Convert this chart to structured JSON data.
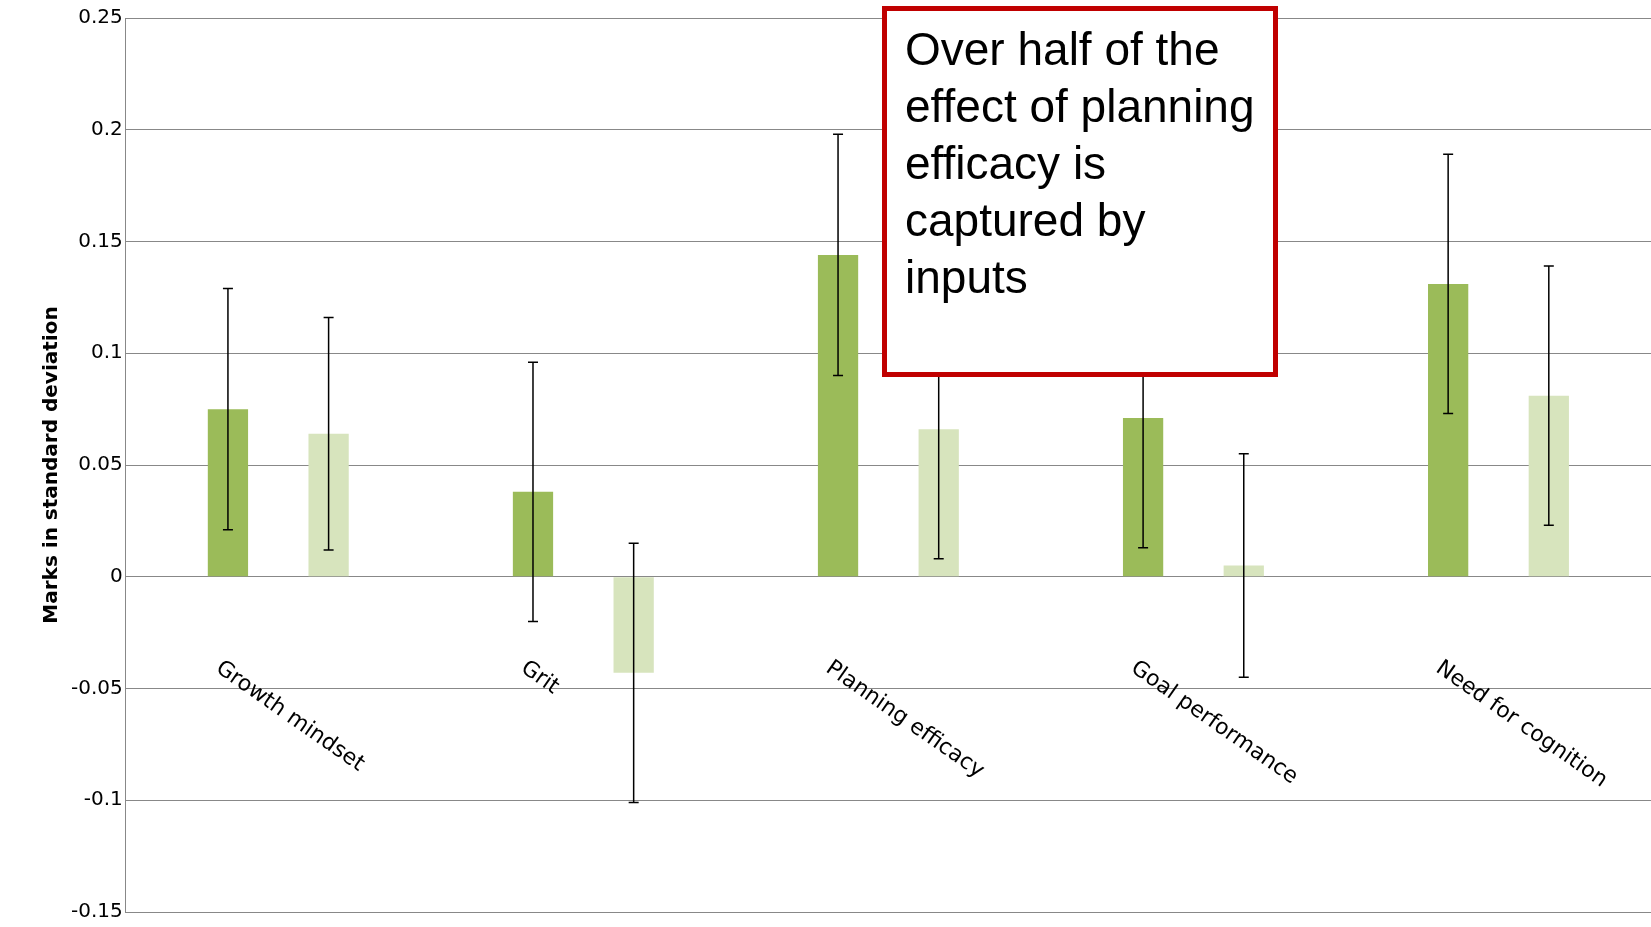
{
  "chart_data": {
    "type": "bar",
    "ylabel": "Marks in standard deviation",
    "categories": [
      "Growth mindset",
      "Grit",
      "Planning efficacy",
      "Goal performance",
      "Need for cognition"
    ],
    "series": [
      {
        "color": "#9bbb59",
        "values": [
          0.075,
          0.038,
          0.144,
          0.071,
          0.131
        ],
        "errors": [
          [
            0.021,
            0.129
          ],
          [
            -0.02,
            0.096
          ],
          [
            0.09,
            0.198
          ],
          [
            0.013,
            0.09
          ],
          [
            0.073,
            0.189
          ]
        ]
      },
      {
        "color": "#d7e4bd",
        "values": [
          0.064,
          -0.043,
          0.066,
          0.005,
          0.081
        ],
        "errors": [
          [
            0.012,
            0.116
          ],
          [
            -0.101,
            0.015
          ],
          [
            0.008,
            0.09
          ],
          [
            -0.045,
            0.055
          ],
          [
            0.023,
            0.139
          ]
        ]
      }
    ],
    "ylim": [
      -0.15,
      0.25
    ],
    "yticks": [
      -0.15,
      -0.1,
      -0.05,
      0,
      0.05,
      0.1,
      0.15,
      0.2,
      0.25
    ],
    "grid": "y",
    "annotations": [
      "Over half of the effect of planning efficacy is captured by inputs"
    ]
  }
}
